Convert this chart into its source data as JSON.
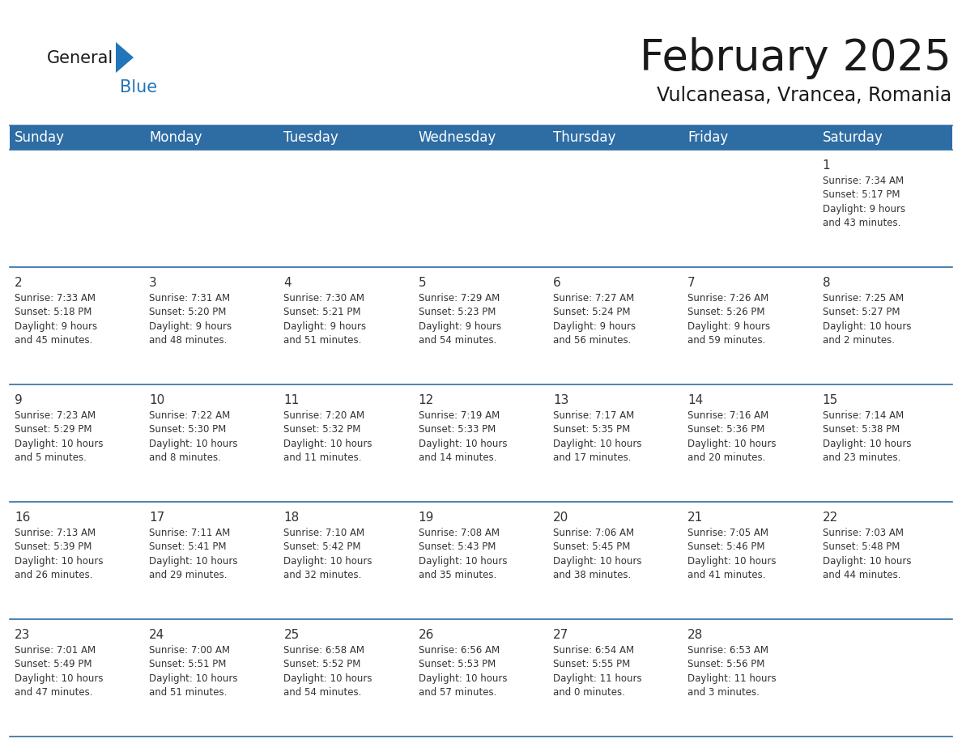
{
  "title": "February 2025",
  "subtitle": "Vulcaneasa, Vrancea, Romania",
  "header_color": "#2E6DA4",
  "header_text_color": "#FFFFFF",
  "cell_bg": "#FFFFFF",
  "cell_alt_bg": "#F0F4F8",
  "separator_color": "#2E6DA4",
  "text_color": "#333333",
  "day_names": [
    "Sunday",
    "Monday",
    "Tuesday",
    "Wednesday",
    "Thursday",
    "Friday",
    "Saturday"
  ],
  "title_fontsize": 38,
  "subtitle_fontsize": 17,
  "header_fontsize": 12,
  "day_num_fontsize": 11,
  "info_fontsize": 8.5,
  "weeks": [
    [
      {
        "day": "",
        "info": ""
      },
      {
        "day": "",
        "info": ""
      },
      {
        "day": "",
        "info": ""
      },
      {
        "day": "",
        "info": ""
      },
      {
        "day": "",
        "info": ""
      },
      {
        "day": "",
        "info": ""
      },
      {
        "day": "1",
        "info": "Sunrise: 7:34 AM\nSunset: 5:17 PM\nDaylight: 9 hours\nand 43 minutes."
      }
    ],
    [
      {
        "day": "2",
        "info": "Sunrise: 7:33 AM\nSunset: 5:18 PM\nDaylight: 9 hours\nand 45 minutes."
      },
      {
        "day": "3",
        "info": "Sunrise: 7:31 AM\nSunset: 5:20 PM\nDaylight: 9 hours\nand 48 minutes."
      },
      {
        "day": "4",
        "info": "Sunrise: 7:30 AM\nSunset: 5:21 PM\nDaylight: 9 hours\nand 51 minutes."
      },
      {
        "day": "5",
        "info": "Sunrise: 7:29 AM\nSunset: 5:23 PM\nDaylight: 9 hours\nand 54 minutes."
      },
      {
        "day": "6",
        "info": "Sunrise: 7:27 AM\nSunset: 5:24 PM\nDaylight: 9 hours\nand 56 minutes."
      },
      {
        "day": "7",
        "info": "Sunrise: 7:26 AM\nSunset: 5:26 PM\nDaylight: 9 hours\nand 59 minutes."
      },
      {
        "day": "8",
        "info": "Sunrise: 7:25 AM\nSunset: 5:27 PM\nDaylight: 10 hours\nand 2 minutes."
      }
    ],
    [
      {
        "day": "9",
        "info": "Sunrise: 7:23 AM\nSunset: 5:29 PM\nDaylight: 10 hours\nand 5 minutes."
      },
      {
        "day": "10",
        "info": "Sunrise: 7:22 AM\nSunset: 5:30 PM\nDaylight: 10 hours\nand 8 minutes."
      },
      {
        "day": "11",
        "info": "Sunrise: 7:20 AM\nSunset: 5:32 PM\nDaylight: 10 hours\nand 11 minutes."
      },
      {
        "day": "12",
        "info": "Sunrise: 7:19 AM\nSunset: 5:33 PM\nDaylight: 10 hours\nand 14 minutes."
      },
      {
        "day": "13",
        "info": "Sunrise: 7:17 AM\nSunset: 5:35 PM\nDaylight: 10 hours\nand 17 minutes."
      },
      {
        "day": "14",
        "info": "Sunrise: 7:16 AM\nSunset: 5:36 PM\nDaylight: 10 hours\nand 20 minutes."
      },
      {
        "day": "15",
        "info": "Sunrise: 7:14 AM\nSunset: 5:38 PM\nDaylight: 10 hours\nand 23 minutes."
      }
    ],
    [
      {
        "day": "16",
        "info": "Sunrise: 7:13 AM\nSunset: 5:39 PM\nDaylight: 10 hours\nand 26 minutes."
      },
      {
        "day": "17",
        "info": "Sunrise: 7:11 AM\nSunset: 5:41 PM\nDaylight: 10 hours\nand 29 minutes."
      },
      {
        "day": "18",
        "info": "Sunrise: 7:10 AM\nSunset: 5:42 PM\nDaylight: 10 hours\nand 32 minutes."
      },
      {
        "day": "19",
        "info": "Sunrise: 7:08 AM\nSunset: 5:43 PM\nDaylight: 10 hours\nand 35 minutes."
      },
      {
        "day": "20",
        "info": "Sunrise: 7:06 AM\nSunset: 5:45 PM\nDaylight: 10 hours\nand 38 minutes."
      },
      {
        "day": "21",
        "info": "Sunrise: 7:05 AM\nSunset: 5:46 PM\nDaylight: 10 hours\nand 41 minutes."
      },
      {
        "day": "22",
        "info": "Sunrise: 7:03 AM\nSunset: 5:48 PM\nDaylight: 10 hours\nand 44 minutes."
      }
    ],
    [
      {
        "day": "23",
        "info": "Sunrise: 7:01 AM\nSunset: 5:49 PM\nDaylight: 10 hours\nand 47 minutes."
      },
      {
        "day": "24",
        "info": "Sunrise: 7:00 AM\nSunset: 5:51 PM\nDaylight: 10 hours\nand 51 minutes."
      },
      {
        "day": "25",
        "info": "Sunrise: 6:58 AM\nSunset: 5:52 PM\nDaylight: 10 hours\nand 54 minutes."
      },
      {
        "day": "26",
        "info": "Sunrise: 6:56 AM\nSunset: 5:53 PM\nDaylight: 10 hours\nand 57 minutes."
      },
      {
        "day": "27",
        "info": "Sunrise: 6:54 AM\nSunset: 5:55 PM\nDaylight: 11 hours\nand 0 minutes."
      },
      {
        "day": "28",
        "info": "Sunrise: 6:53 AM\nSunset: 5:56 PM\nDaylight: 11 hours\nand 3 minutes."
      },
      {
        "day": "",
        "info": ""
      }
    ]
  ],
  "logo_color_general": "#1a1a1a",
  "logo_color_blue": "#2175B8",
  "logo_triangle_color": "#2175B8"
}
